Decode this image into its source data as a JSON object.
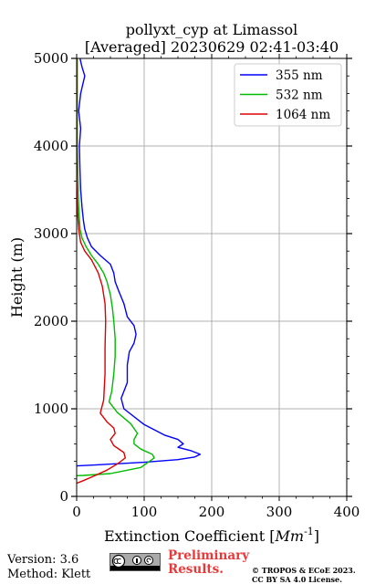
{
  "chart_data": {
    "type": "line",
    "title": "pollyxt_cyp at Limassol",
    "subtitle": "[Averaged] 20230629 02:41-03:40",
    "xlabel": "Extinction Coefficient [",
    "xlabel_unit": "Mm",
    "xlabel_exp": "-1",
    "xlabel_close": "]",
    "ylabel": "Height (m)",
    "xlim": [
      0,
      400
    ],
    "ylim": [
      0,
      5000
    ],
    "xticks": [
      "0",
      "100",
      "200",
      "300",
      "400"
    ],
    "yticks": [
      "0",
      "1000",
      "2000",
      "3000",
      "4000",
      "5000"
    ],
    "grid": true,
    "legend_position": "top-right",
    "series": [
      {
        "name": "355 nm",
        "color": "#0000ff",
        "points": [
          [
            -20,
            340
          ],
          [
            30,
            360
          ],
          [
            100,
            390
          ],
          [
            150,
            420
          ],
          [
            175,
            450
          ],
          [
            183,
            480
          ],
          [
            170,
            520
          ],
          [
            150,
            560
          ],
          [
            158,
            600
          ],
          [
            150,
            650
          ],
          [
            130,
            700
          ],
          [
            100,
            820
          ],
          [
            70,
            1000
          ],
          [
            66,
            1120
          ],
          [
            75,
            1300
          ],
          [
            75,
            1500
          ],
          [
            78,
            1650
          ],
          [
            85,
            1750
          ],
          [
            88,
            1850
          ],
          [
            85,
            1950
          ],
          [
            75,
            2050
          ],
          [
            70,
            2200
          ],
          [
            62,
            2350
          ],
          [
            57,
            2450
          ],
          [
            55,
            2550
          ],
          [
            50,
            2650
          ],
          [
            35,
            2750
          ],
          [
            22,
            2850
          ],
          [
            16,
            2950
          ],
          [
            12,
            3050
          ],
          [
            10,
            3150
          ],
          [
            8,
            3300
          ],
          [
            6,
            3500
          ],
          [
            5,
            3700
          ],
          [
            4,
            4000
          ],
          [
            6,
            4200
          ],
          [
            3,
            4400
          ],
          [
            6,
            4600
          ],
          [
            12,
            4800
          ],
          [
            8,
            4900
          ],
          [
            5,
            5000
          ]
        ]
      },
      {
        "name": "532 nm",
        "color": "#00bb00",
        "points": [
          [
            -20,
            230
          ],
          [
            10,
            240
          ],
          [
            50,
            260
          ],
          [
            95,
            330
          ],
          [
            115,
            440
          ],
          [
            112,
            480
          ],
          [
            95,
            540
          ],
          [
            85,
            600
          ],
          [
            85,
            650
          ],
          [
            90,
            720
          ],
          [
            80,
            830
          ],
          [
            60,
            960
          ],
          [
            48,
            1080
          ],
          [
            52,
            1200
          ],
          [
            55,
            1400
          ],
          [
            57,
            1600
          ],
          [
            57,
            1800
          ],
          [
            55,
            2000
          ],
          [
            53,
            2150
          ],
          [
            50,
            2300
          ],
          [
            45,
            2450
          ],
          [
            40,
            2550
          ],
          [
            32,
            2650
          ],
          [
            22,
            2750
          ],
          [
            14,
            2850
          ],
          [
            8,
            2950
          ],
          [
            5,
            3050
          ],
          [
            3,
            3300
          ],
          [
            2,
            3600
          ],
          [
            1,
            4000
          ],
          [
            1,
            4500
          ],
          [
            1,
            5000
          ]
        ]
      },
      {
        "name": "1064 nm",
        "color": "#dd0000",
        "points": [
          [
            0,
            150
          ],
          [
            10,
            180
          ],
          [
            25,
            230
          ],
          [
            45,
            300
          ],
          [
            62,
            380
          ],
          [
            72,
            440
          ],
          [
            70,
            500
          ],
          [
            55,
            580
          ],
          [
            50,
            650
          ],
          [
            57,
            720
          ],
          [
            55,
            780
          ],
          [
            45,
            850
          ],
          [
            35,
            950
          ],
          [
            40,
            1100
          ],
          [
            42,
            1400
          ],
          [
            42,
            1700
          ],
          [
            43,
            2000
          ],
          [
            42,
            2200
          ],
          [
            38,
            2400
          ],
          [
            32,
            2550
          ],
          [
            22,
            2700
          ],
          [
            12,
            2800
          ],
          [
            6,
            2900
          ],
          [
            3,
            3050
          ],
          [
            1,
            3300
          ],
          [
            0,
            3600
          ],
          [
            0,
            4000
          ],
          [
            0,
            4500
          ],
          [
            0,
            5000
          ]
        ]
      }
    ]
  },
  "footer": {
    "version": "Version: 3.6",
    "method": "Method: Klett",
    "preliminary_line1": "Preliminary",
    "preliminary_line2": "Results.",
    "copyright_line1": "© TROPOS & ECoE 2023.",
    "copyright_line2": "CC BY SA 4.0 License."
  }
}
